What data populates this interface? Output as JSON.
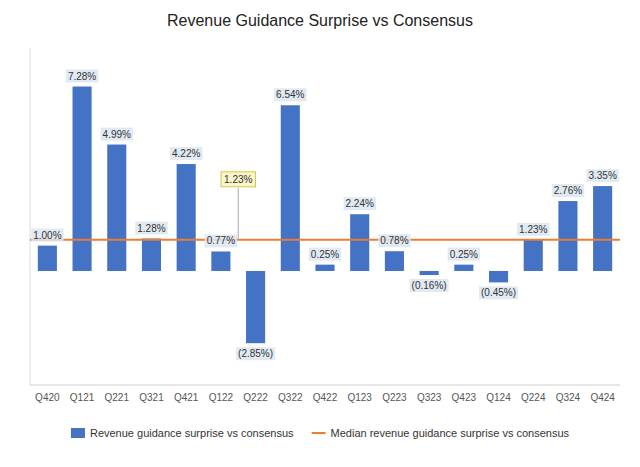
{
  "chart_data": {
    "type": "bar",
    "title": "Revenue Guidance Surprise vs Consensus",
    "categories": [
      "Q420",
      "Q121",
      "Q221",
      "Q321",
      "Q421",
      "Q122",
      "Q222",
      "Q322",
      "Q422",
      "Q123",
      "Q223",
      "Q323",
      "Q423",
      "Q124",
      "Q224",
      "Q324",
      "Q424"
    ],
    "series": [
      {
        "name": "Revenue guidance surprise vs consensus",
        "color": "#4472C4",
        "values": [
          1.0,
          7.28,
          4.99,
          1.28,
          4.22,
          0.77,
          -2.85,
          6.54,
          0.25,
          2.24,
          0.78,
          -0.16,
          0.25,
          -0.45,
          1.23,
          2.76,
          3.35
        ],
        "value_labels": [
          "1.00%",
          "7.28%",
          "4.99%",
          "1.28%",
          "4.22%",
          "0.77%",
          "(2.85%)",
          "6.54%",
          "0.25%",
          "2.24%",
          "0.78%",
          "(0.16%)",
          "0.25%",
          "(0.45%)",
          "1.23%",
          "2.76%",
          "3.35%"
        ]
      }
    ],
    "reference_lines": [
      {
        "name": "Median revenue guidance surprise vs consensus",
        "value": 1.23,
        "color": "#ED7D31"
      }
    ],
    "annotations": [
      {
        "text": "1.23%",
        "value": 1.23,
        "category": "Q222"
      }
    ],
    "ylim": [
      -4.5,
      8.8
    ],
    "grid": false,
    "legend": "bottom",
    "data_labels": true,
    "tick_labels": "x"
  }
}
